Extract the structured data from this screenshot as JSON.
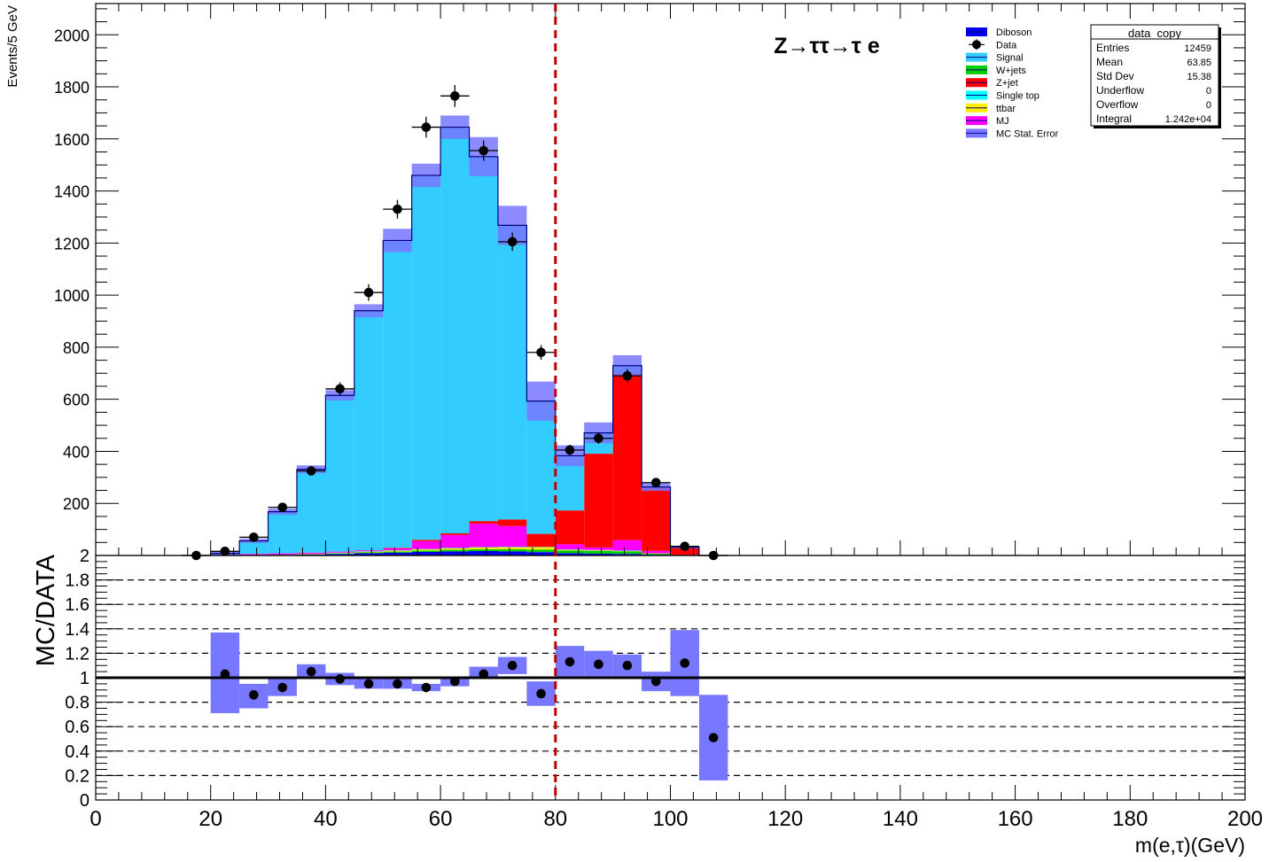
{
  "chart_data": [
    {
      "type": "bar",
      "stacked": true,
      "panel": "main",
      "title": "Z→ττ→τ e",
      "ylabel": "Events/5 GeV",
      "xlabel": "",
      "xlim": [
        0,
        200
      ],
      "ylim": [
        0,
        2120
      ],
      "y_ticks": [
        200,
        400,
        600,
        800,
        1000,
        1200,
        1400,
        1600,
        1800,
        2000
      ],
      "bin_width": 5,
      "x": [
        17.5,
        22.5,
        27.5,
        32.5,
        37.5,
        42.5,
        47.5,
        52.5,
        57.5,
        62.5,
        67.5,
        72.5,
        77.5,
        82.5,
        87.5,
        92.5,
        97.5,
        102.5,
        107.5
      ],
      "series": [
        {
          "name": "Diboson",
          "color": "#0000ee",
          "values": [
            0,
            0,
            1,
            2,
            4,
            6,
            9,
            11,
            14,
            16,
            17,
            16,
            13,
            9,
            7,
            6,
            3,
            1,
            0
          ]
        },
        {
          "name": "W+jets",
          "color": "#00cc00",
          "values": [
            0,
            0,
            0,
            1,
            1,
            2,
            3,
            4,
            5,
            6,
            7,
            8,
            10,
            10,
            10,
            10,
            4,
            1,
            0
          ]
        },
        {
          "name": "ttbar",
          "color": "#ffee00",
          "values": [
            0,
            0,
            0,
            0,
            1,
            2,
            3,
            4,
            5,
            6,
            7,
            8,
            9,
            3,
            3,
            2,
            1,
            0,
            0
          ]
        },
        {
          "name": "Single top",
          "color": "#00ffff",
          "values": [
            0,
            0,
            0,
            0,
            0,
            1,
            1,
            1,
            1,
            1,
            1,
            1,
            1,
            1,
            1,
            1,
            0,
            0,
            0
          ]
        },
        {
          "name": "MJ",
          "color": "#ff00ff",
          "values": [
            0,
            0,
            5,
            5,
            5,
            4,
            4,
            8,
            30,
            50,
            90,
            80,
            0,
            20,
            10,
            40,
            10,
            0,
            0
          ]
        },
        {
          "name": "Z+jet",
          "color": "#ff0000",
          "values": [
            0,
            0,
            0,
            0,
            0,
            0,
            0,
            2,
            5,
            6,
            10,
            25,
            50,
            130,
            360,
            640,
            240,
            30,
            0
          ]
        },
        {
          "name": "Signal",
          "color": "#33ccff",
          "values": [
            0,
            8,
            50,
            160,
            320,
            600,
            920,
            1180,
            1400,
            1560,
            1400,
            1130,
            510,
            210,
            80,
            30,
            5,
            0,
            0
          ]
        }
      ],
      "mc_stat_error": {
        "name": "MC Stat. Error",
        "color": "#7777ff",
        "values": [
          0,
          6,
          8,
          12,
          15,
          20,
          25,
          45,
          45,
          45,
          75,
          75,
          75,
          40,
          40,
          40,
          15,
          5,
          0
        ]
      },
      "data": {
        "name": "Data",
        "values": [
          0,
          16,
          70,
          185,
          325,
          640,
          1010,
          1330,
          1645,
          1765,
          1555,
          1205,
          780,
          405,
          450,
          690,
          280,
          35,
          0
        ],
        "errors": [
          0,
          4,
          8,
          14,
          18,
          25,
          32,
          36,
          40,
          42,
          39,
          35,
          28,
          20,
          21,
          26,
          17,
          6,
          0
        ]
      },
      "stat_box": {
        "title": "data_copy",
        "rows": [
          {
            "label": "Entries",
            "value": "12459"
          },
          {
            "label": "Mean",
            "value": "63.85"
          },
          {
            "label": "Std Dev",
            "value": "15.38"
          },
          {
            "label": "Underflow",
            "value": "0"
          },
          {
            "label": "Overflow",
            "value": "0"
          },
          {
            "label": "Integral",
            "value": "1.242e+04"
          }
        ]
      },
      "legend_order": [
        "Diboson",
        "Data",
        "Signal",
        "W+jets",
        "Z+jet",
        "Single top",
        "ttbar",
        "MJ",
        "MC Stat. Error"
      ],
      "legend_placement": "top-right",
      "cut_line_x": 80
    },
    {
      "type": "scatter",
      "panel": "ratio",
      "ylabel": "MC/DATA",
      "xlabel": "m(e,τ)(GeV)",
      "xlim": [
        0,
        200
      ],
      "ylim": [
        0,
        2
      ],
      "y_ticks": [
        "0",
        "0.2",
        "0.4",
        "0.6",
        "0.8",
        "1",
        "1.2",
        "1.4",
        "1.6",
        "1.8",
        "2"
      ],
      "x_ticks": [
        "0",
        "20",
        "40",
        "60",
        "80",
        "100",
        "120",
        "140",
        "160",
        "180",
        "200"
      ],
      "grid_y": [
        0.2,
        0.4,
        0.6,
        0.8,
        1.2,
        1.4,
        1.6,
        1.8
      ],
      "reference_line": 1,
      "x": [
        22.5,
        27.5,
        32.5,
        37.5,
        42.5,
        47.5,
        52.5,
        57.5,
        62.5,
        67.5,
        72.5,
        77.5,
        82.5,
        87.5,
        92.5,
        97.5,
        102.5,
        107.5
      ],
      "values": [
        1.03,
        0.86,
        0.92,
        1.05,
        0.99,
        0.95,
        0.95,
        0.92,
        0.97,
        1.03,
        1.1,
        0.87,
        1.13,
        1.11,
        1.1,
        0.97,
        1.12,
        0.51
      ],
      "band_low": [
        0.71,
        0.75,
        0.85,
        0.99,
        0.94,
        0.91,
        0.91,
        0.89,
        0.93,
        0.99,
        1.03,
        0.77,
        1.0,
        1.0,
        1.01,
        0.89,
        0.85,
        0.16
      ],
      "band_high": [
        1.37,
        0.95,
        1.01,
        1.11,
        1.04,
        0.99,
        0.99,
        0.95,
        1.01,
        1.09,
        1.17,
        0.97,
        1.26,
        1.22,
        1.19,
        1.05,
        1.39,
        0.86
      ]
    }
  ]
}
